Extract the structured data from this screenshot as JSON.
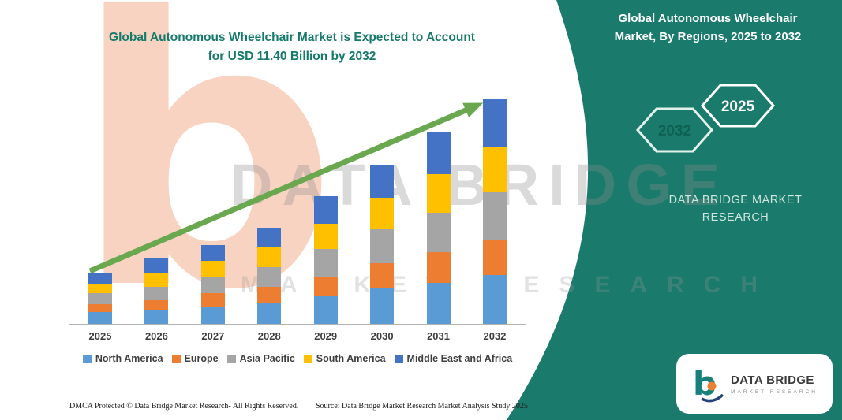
{
  "titles": {
    "left": {
      "line1": "Global Autonomous Wheelchair Market is Expected to Account",
      "line2": "for USD 11.40 Billion by 2032"
    },
    "right": {
      "line1": "Global Autonomous Wheelchair",
      "line2": "Market, By Regions, 2025 to 2032"
    }
  },
  "side_panel": {
    "hexagon_back_year": "2032",
    "hexagon_front_year": "2025",
    "brand_line1": "DATA BRIDGE MARKET",
    "brand_line2": "RESEARCH"
  },
  "watermark": {
    "big_letter": "b",
    "line1": "DATA BRIDGE",
    "line2": "MARKET RESEARCH"
  },
  "footer": {
    "dmca": "DMCA Protected © Data Bridge Market Research- All Rights Reserved.",
    "source": "Source: Data Bridge Market Research Market Analysis Study 2025"
  },
  "logo": {
    "name": "DATA BRIDGE",
    "sub": "MARKET RESEARCH"
  },
  "colors": {
    "teal": "#1a7a6c",
    "arrow_green": "#6aa84f",
    "title_teal": "#157a6a"
  },
  "chart_data": {
    "type": "bar",
    "stacked": true,
    "title": "Global Autonomous Wheelchair Market is Expected to Account for USD 11.40 Billion by 2032",
    "unit": "USD Billion",
    "categories": [
      "2025",
      "2026",
      "2027",
      "2028",
      "2029",
      "2030",
      "2031",
      "2032"
    ],
    "series": [
      {
        "name": "North America",
        "color": "#5B9BD5",
        "values": [
          0.6,
          0.7,
          0.9,
          1.1,
          1.4,
          1.8,
          2.1,
          2.5
        ]
      },
      {
        "name": "Europe",
        "color": "#ED7D31",
        "values": [
          0.4,
          0.5,
          0.65,
          0.8,
          1.0,
          1.3,
          1.55,
          1.8
        ]
      },
      {
        "name": "Asia Pacific",
        "color": "#A5A5A5",
        "values": [
          0.55,
          0.7,
          0.85,
          1.0,
          1.4,
          1.7,
          2.0,
          2.4
        ]
      },
      {
        "name": "South America",
        "color": "#FFC000",
        "values": [
          0.5,
          0.65,
          0.8,
          1.0,
          1.3,
          1.6,
          1.95,
          2.3
        ]
      },
      {
        "name": "Middle East and Africa",
        "color": "#4472C4",
        "values": [
          0.55,
          0.75,
          0.8,
          1.0,
          1.4,
          1.7,
          2.1,
          2.4
        ]
      }
    ],
    "totals": [
      2.6,
      3.3,
      4.0,
      4.9,
      6.5,
      8.1,
      9.7,
      11.4
    ],
    "ylim": [
      0,
      12
    ],
    "xlabel": "",
    "ylabel": "",
    "grid": false,
    "legend_position": "bottom",
    "trend_arrow": true
  }
}
